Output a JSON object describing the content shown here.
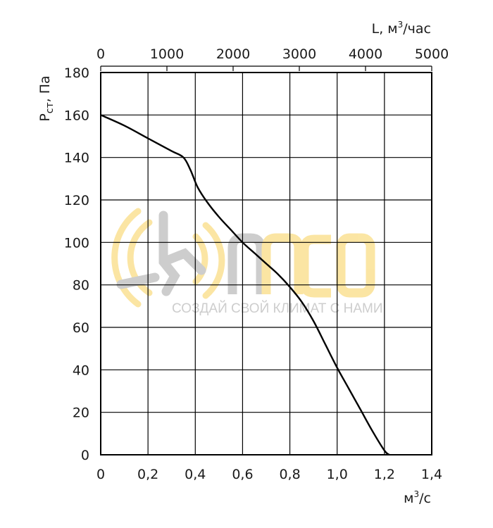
{
  "chart_data": {
    "type": "line",
    "ylabel_main": "P",
    "ylabel_sub": "ст",
    "ylabel_rest": ", Па",
    "xlabel_bottom_base": "м",
    "xlabel_bottom_sup": "3",
    "xlabel_bottom_rest": "/с",
    "xlabel_top_base": "L, м",
    "xlabel_top_sup": "3",
    "xlabel_top_rest": "/час",
    "xlim": [
      0,
      1.4
    ],
    "ylim": [
      0,
      180
    ],
    "top_xlim": [
      0,
      5000
    ],
    "x_ticks": [
      {
        "value": 0,
        "label": "0"
      },
      {
        "value": 0.2,
        "label": "0,2"
      },
      {
        "value": 0.4,
        "label": "0,4"
      },
      {
        "value": 0.6,
        "label": "0,6"
      },
      {
        "value": 0.8,
        "label": "0,8"
      },
      {
        "value": 1.0,
        "label": "1,0"
      },
      {
        "value": 1.2,
        "label": "1,2"
      },
      {
        "value": 1.4,
        "label": "1,4"
      }
    ],
    "y_ticks": [
      {
        "value": 0,
        "label": "0"
      },
      {
        "value": 20,
        "label": "20"
      },
      {
        "value": 40,
        "label": "40"
      },
      {
        "value": 60,
        "label": "60"
      },
      {
        "value": 80,
        "label": "80"
      },
      {
        "value": 100,
        "label": "100"
      },
      {
        "value": 120,
        "label": "120"
      },
      {
        "value": 140,
        "label": "140"
      },
      {
        "value": 160,
        "label": "160"
      },
      {
        "value": 180,
        "label": "180"
      }
    ],
    "top_ticks": [
      {
        "value": 0,
        "label": "0"
      },
      {
        "value": 1000,
        "label": "1000"
      },
      {
        "value": 2000,
        "label": "2000"
      },
      {
        "value": 3000,
        "label": "3000"
      },
      {
        "value": 4000,
        "label": "4000"
      },
      {
        "value": 5000,
        "label": "5000"
      }
    ],
    "grid": true,
    "series": [
      {
        "color": "#000000",
        "x": [
          0,
          0.1,
          0.2,
          0.3,
          0.35,
          0.38,
          0.41,
          0.45,
          0.5,
          0.55,
          0.6,
          0.65,
          0.7,
          0.75,
          0.8,
          0.85,
          0.9,
          0.95,
          1.0,
          1.05,
          1.1,
          1.15,
          1.2,
          1.22
        ],
        "y": [
          160,
          155,
          149,
          143,
          140,
          134,
          126,
          119,
          112,
          106,
          100,
          95,
          90,
          85,
          79,
          72,
          63,
          52,
          41,
          31,
          21,
          11,
          2,
          0
        ]
      }
    ]
  },
  "watermark": {
    "brand": "neo",
    "slogan": "СОЗДАЙ СВОЙ КЛИМАТ С НАМИ",
    "colors": {
      "gray": "#c8c8c8",
      "yellow": "#fbe39a"
    }
  }
}
